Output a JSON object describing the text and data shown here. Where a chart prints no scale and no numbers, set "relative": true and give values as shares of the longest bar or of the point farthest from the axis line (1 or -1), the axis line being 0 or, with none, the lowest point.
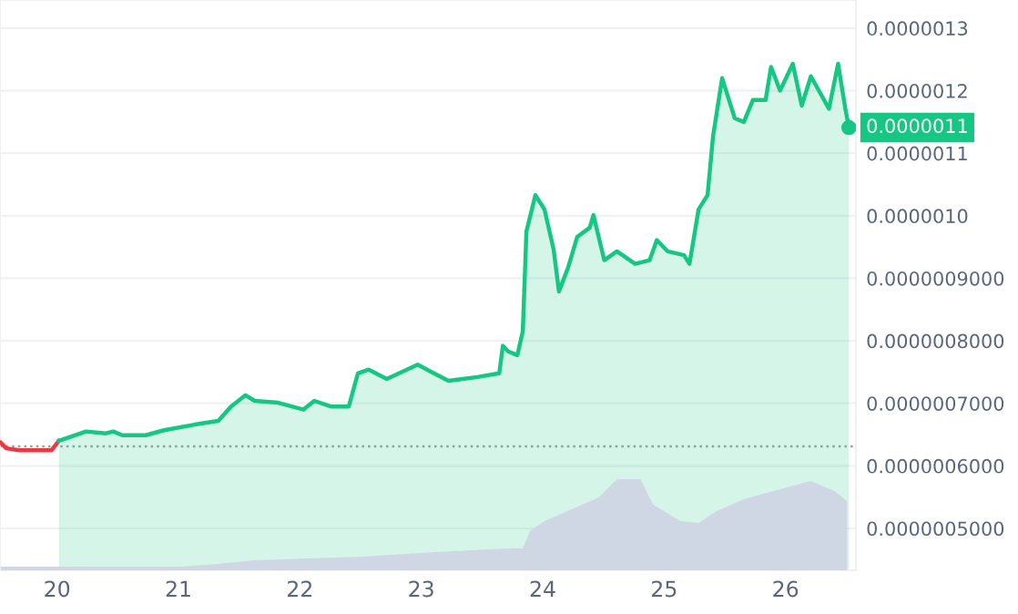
{
  "chart_data": [
    {
      "type": "line",
      "series": [
        {
          "type": "line",
          "color": "#ea3943",
          "x": [
            19.537,
            19.582,
            19.687,
            19.955,
            20.015
          ],
          "values": [
            6.37e-07,
            6.28e-07,
            6.25e-07,
            6.25e-07,
            6.4e-07
          ]
        },
        {
          "type": "area",
          "color": "#16c784",
          "x": [
            20.015,
            20.239,
            20.403,
            20.463,
            20.537,
            20.731,
            20.881,
            21.134,
            21.328,
            21.433,
            21.552,
            21.627,
            21.821,
            22.03,
            22.119,
            22.254,
            22.403,
            22.478,
            22.567,
            22.716,
            22.97,
            23.075,
            23.224,
            23.463,
            23.642,
            23.672,
            23.716,
            23.791,
            23.836,
            23.866,
            23.94,
            24.015,
            24.09,
            24.134,
            24.209,
            24.284,
            24.388,
            24.418,
            24.507,
            24.612,
            24.761,
            24.881,
            24.94,
            25.03,
            25.164,
            25.209,
            25.284,
            25.358,
            25.403,
            25.478,
            25.582,
            25.657,
            25.731,
            25.836,
            25.881,
            25.955,
            26.06,
            26.134,
            26.209,
            26.358,
            26.433,
            26.493,
            26.522
          ],
          "values": [
            6.4e-07,
            6.55e-07,
            6.52e-07,
            6.55e-07,
            6.49e-07,
            6.49e-07,
            6.57e-07,
            6.66e-07,
            6.72e-07,
            6.95e-07,
            7.13e-07,
            7.04e-07,
            7.01e-07,
            6.9e-07,
            7.04e-07,
            6.95e-07,
            6.95e-07,
            7.48e-07,
            7.54e-07,
            7.39e-07,
            7.62e-07,
            7.51e-07,
            7.36e-07,
            7.42e-07,
            7.48e-07,
            7.92e-07,
            7.83e-07,
            7.77e-07,
            8.15e-07,
            9.75e-07,
            1.033e-06,
            1.01e-06,
            9.46e-07,
            8.79e-07,
            9.17e-07,
            9.66e-07,
            9.81e-07,
            1.001e-06,
            9.29e-07,
            9.43e-07,
            9.23e-07,
            9.29e-07,
            9.61e-07,
            9.43e-07,
            9.37e-07,
            9.23e-07,
            1.01e-06,
            1.033e-06,
            1.127e-06,
            1.22e-06,
            1.156e-06,
            1.15e-06,
            1.185e-06,
            1.185e-06,
            1.238e-06,
            1.2e-06,
            1.243e-06,
            1.176e-06,
            1.223e-06,
            1.171e-06,
            1.243e-06,
            1.171e-06,
            1.141e-06
          ]
        }
      ],
      "xlim": [
        19.53,
        26.58
      ],
      "xticks": [
        20,
        21,
        22,
        23,
        24,
        25,
        26
      ],
      "ylim": [
        4.33e-07,
        1.345e-06
      ],
      "yticks": [
        {
          "value": 5e-07,
          "label": "0.0000005000"
        },
        {
          "value": 6e-07,
          "label": "0.0000006000"
        },
        {
          "value": 7e-07,
          "label": "0.0000007000"
        },
        {
          "value": 8e-07,
          "label": "0.0000008000"
        },
        {
          "value": 9e-07,
          "label": "0.0000009000"
        },
        {
          "value": 1e-06,
          "label": "0.0000010"
        },
        {
          "value": 1.1e-06,
          "label": "0.0000011"
        },
        {
          "value": 1.2e-06,
          "label": "0.0000012"
        },
        {
          "value": 1.3e-06,
          "label": "0.0000013"
        }
      ],
      "grid": "y",
      "legend": false,
      "ref_lines": [
        {
          "axis": "y",
          "value": 6.31e-07,
          "color": "#9aa0a6",
          "line_style": "dotted"
        }
      ],
      "annotations": [
        {
          "text": "0.0000011",
          "x": 26.522,
          "y": 1.141e-06
        }
      ]
    },
    {
      "type": "area",
      "relative": true,
      "series": [
        {
          "color": "#cfd6e4",
          "x": [
            19.537,
            21.03,
            21.328,
            21.627,
            22.522,
            23.119,
            23.716,
            23.836,
            23.896,
            24.015,
            24.239,
            24.463,
            24.612,
            24.806,
            24.91,
            25.134,
            25.284,
            25.433,
            25.657,
            25.955,
            26.209,
            26.403,
            26.507
          ],
          "values": [
            0.04,
            0.04,
            0.07,
            0.11,
            0.15,
            0.2,
            0.24,
            0.24,
            0.43,
            0.54,
            0.67,
            0.8,
            1,
            1,
            0.72,
            0.54,
            0.52,
            0.65,
            0.78,
            0.89,
            0.98,
            0.87,
            0.76
          ]
        }
      ],
      "xlim": [
        19.53,
        26.58
      ]
    }
  ]
}
